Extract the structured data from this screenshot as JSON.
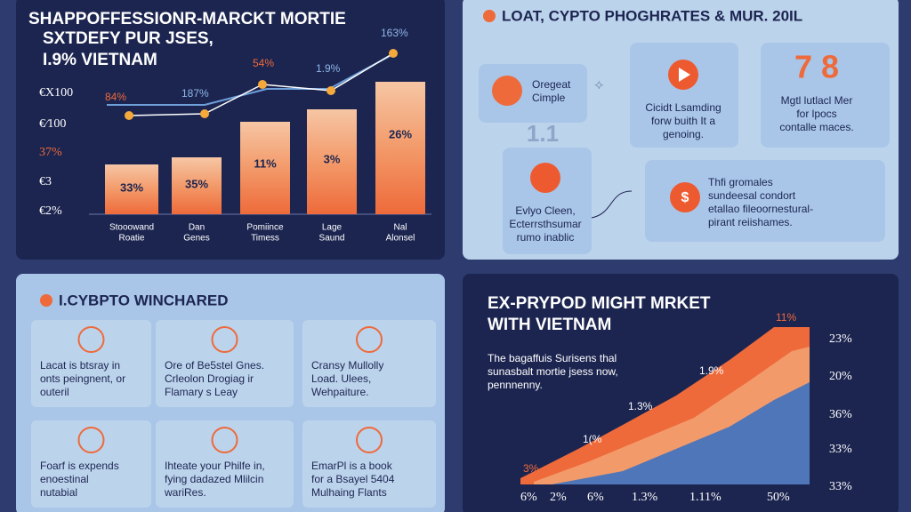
{
  "top_left": {
    "title": [
      "SHAPPOFFESSIONR-MARCKT MORTIE",
      "SXTDEFY PUR JSES,",
      "I.9% VIETNAM"
    ],
    "y_labels": [
      "€X100",
      "€⁄100",
      "37%",
      "€3",
      "€2%"
    ],
    "bars": [
      {
        "label": "33%",
        "category": [
          "Stooowand",
          "Roatie"
        ]
      },
      {
        "label": "35%",
        "category": [
          "Dan",
          "Genes"
        ]
      },
      {
        "label": "11%",
        "category": [
          "Pomiince",
          "Timess"
        ]
      },
      {
        "label": "3%",
        "category": [
          "Lage",
          "Saund"
        ]
      },
      {
        "label": "26%",
        "category": [
          "Nal",
          "Alonsel"
        ]
      }
    ],
    "line_labels": [
      "84%",
      "187%",
      "54%",
      "1.9%",
      "163%"
    ]
  },
  "top_right": {
    "title": "LOAT, CYPTO PHOGHRATES & MUR. 20IL",
    "boxes": [
      {
        "lines": [
          "Oregeat",
          "Cimple"
        ]
      },
      {
        "lines": [
          "Cicidt Lsamding",
          "forw buith It a",
          "genoing."
        ]
      },
      {
        "big": "7 8",
        "lines": [
          "Mgtl lutlacl Mer",
          "for lpocs",
          "contalle maces."
        ]
      },
      {
        "lines": [
          "Evlyo Cleen,",
          "Ecterrsthsumar",
          "rumo inablic"
        ]
      },
      {
        "lines": [
          "Thfi gromales",
          "sundeesal condort",
          "etallao fileoornestural-",
          "pirant reiishames."
        ]
      }
    ],
    "marker": "1.1"
  },
  "bottom_left": {
    "title": "I.CYBPTO WINCHARED",
    "cards": [
      [
        "Lacat is btsray in",
        "onts peingnent, or",
        "outeril"
      ],
      [
        "Ore of Be5stel Gnes.",
        "Crleolon Drogiag ir",
        "Flamary s Leay"
      ],
      [
        "Cransy Mullolly",
        "Load. Ulees,",
        "Wehpaiture."
      ],
      [
        "Foarf is expends",
        "enoestinal",
        "nutabial"
      ],
      [
        "Ihteate your Philfe in,",
        "fying dadazed Mlilcin",
        "wariRes."
      ],
      [
        "EmarPl is a book",
        "for a Bsayel 5404",
        "Mulhaing Flants"
      ]
    ]
  },
  "bottom_right": {
    "title": [
      "EX-PRYPOD MIGHT MRKET",
      "WITH VIETNAM"
    ],
    "subtitle": [
      "The bagaffuis Surisens thal",
      "sunasbalt mortie jsess now,",
      "pennnenny."
    ],
    "area_labels": [
      "3%",
      "1(%",
      "1.3%",
      "1.9%",
      "11%"
    ],
    "right_labels": [
      "23%",
      "20%",
      "36%",
      "33%",
      "33%"
    ],
    "bottom_labels": [
      "6%",
      "2%",
      "6%",
      "1.3%",
      "1.11%",
      "50%"
    ]
  }
}
